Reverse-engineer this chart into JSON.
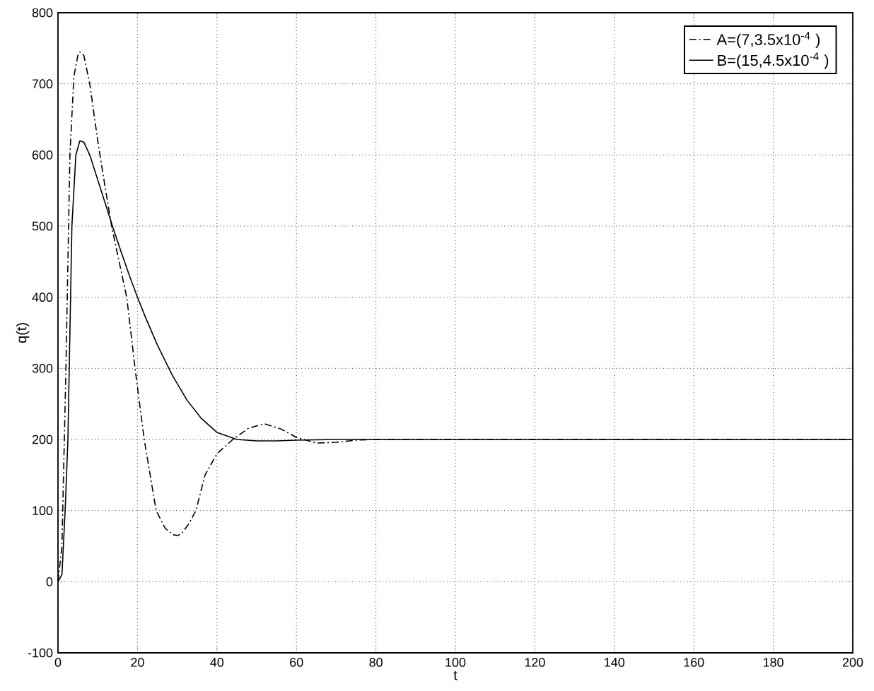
{
  "chart_data": {
    "type": "line",
    "xlabel": "t",
    "ylabel": "q(t)",
    "xlim": [
      0,
      200
    ],
    "ylim": [
      -100,
      800
    ],
    "xticks": [
      0,
      20,
      40,
      60,
      80,
      100,
      120,
      140,
      160,
      180,
      200
    ],
    "yticks": [
      -100,
      0,
      100,
      200,
      300,
      400,
      500,
      600,
      700,
      800
    ],
    "grid": true,
    "legend": "top right",
    "series": [
      {
        "name": "A=(7,3.5x10$^{-4}$ )",
        "color": "#000000",
        "line_style": "dashdot",
        "x": [
          0,
          1,
          2,
          3,
          4,
          5,
          5.5,
          6.5,
          8,
          10,
          12,
          13.5,
          15,
          17.3,
          19.4,
          21.7,
          24.7,
          27,
          29,
          30,
          31,
          33,
          34.7,
          37,
          40,
          44,
          48,
          52,
          56,
          60,
          65,
          70,
          75,
          80,
          90,
          100,
          120,
          140,
          160,
          180,
          200
        ],
        "values": [
          0,
          50,
          300,
          600,
          710,
          740,
          745,
          740,
          700,
          620,
          550,
          500,
          460,
          400,
          300,
          200,
          100,
          75,
          66,
          65,
          67,
          82,
          100,
          150,
          180,
          200,
          216,
          222,
          215,
          203,
          195,
          196,
          199,
          200,
          200,
          200,
          200,
          200,
          200,
          200,
          200
        ]
      },
      {
        "name": "B=(15,4.5x10$^{-4}$ )",
        "color": "#000000",
        "line_style": "solid",
        "x": [
          0,
          1,
          1.8,
          2.5,
          3,
          3.5,
          4.5,
          5.5,
          6.5,
          8,
          10,
          12,
          14,
          16,
          18,
          20,
          22,
          25,
          28.8,
          32.5,
          36,
          40,
          45,
          50,
          55,
          60,
          70,
          80,
          100,
          120,
          140,
          160,
          180,
          200
        ],
        "values": [
          0,
          10,
          100,
          200,
          350,
          500,
          600,
          620,
          618,
          600,
          565,
          530,
          495,
          462,
          430,
          400,
          372,
          333,
          290,
          255,
          230,
          210,
          200,
          198,
          198,
          199,
          200,
          200,
          200,
          200,
          200,
          200,
          200,
          200
        ]
      }
    ]
  }
}
